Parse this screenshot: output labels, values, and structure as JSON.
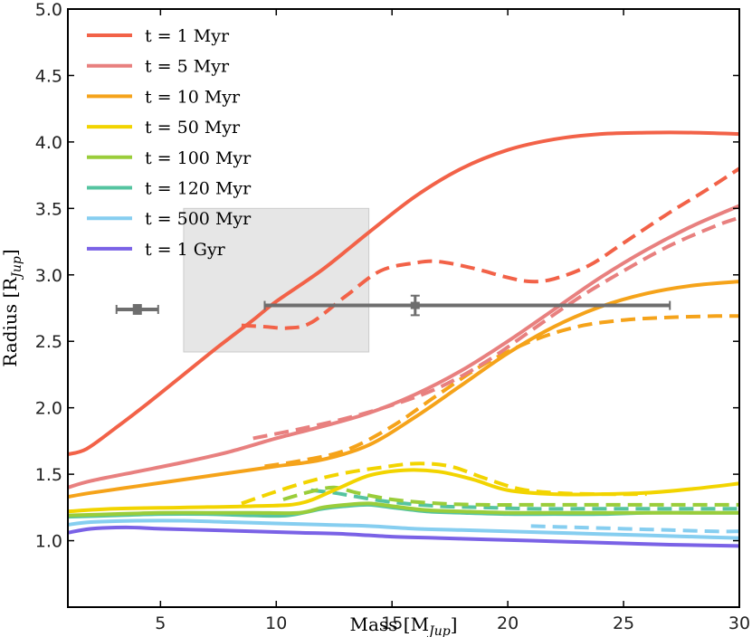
{
  "chart_data": {
    "type": "line",
    "title": "",
    "xlabel": "Mass [M",
    "xlabel_sub": "Jup",
    "xlabel_end": "]",
    "ylabel": "Radius [R",
    "ylabel_sub": "Jup",
    "ylabel_end": "]",
    "xlim": [
      1,
      30
    ],
    "ylim": [
      0.5,
      5.0
    ],
    "xticks": [
      5,
      10,
      15,
      20,
      25,
      30
    ],
    "yticks": [
      1.0,
      1.5,
      2.0,
      2.5,
      3.0,
      3.5,
      4.0,
      4.5,
      5.0
    ],
    "xtick_labels": [
      "5",
      "10",
      "15",
      "20",
      "25",
      "30"
    ],
    "ytick_labels": [
      "1.0",
      "1.5",
      "2.0",
      "2.5",
      "3.0",
      "3.5",
      "4.0",
      "4.5",
      "5.0"
    ],
    "legend_position": "top-left",
    "series": [
      {
        "name": "t = 1 Myr",
        "color": "#f26248",
        "style": "solid",
        "x": [
          1,
          1.8,
          3,
          4.5,
          6,
          7.5,
          9,
          10,
          12,
          14,
          16,
          18,
          20,
          22,
          24,
          26,
          28,
          30
        ],
        "y": [
          1.65,
          1.69,
          1.84,
          2.04,
          2.25,
          2.46,
          2.66,
          2.8,
          3.04,
          3.32,
          3.59,
          3.8,
          3.94,
          4.02,
          4.06,
          4.07,
          4.07,
          4.06
        ]
      },
      {
        "name": "t = 1 Myr (dashed)",
        "color": "#f26248",
        "style": "dashed",
        "x": [
          8.5,
          9.5,
          10.5,
          11.5,
          13,
          14.5,
          16,
          17,
          18.5,
          20,
          21,
          22,
          23.5,
          25,
          27,
          28.5,
          30
        ],
        "y": [
          2.62,
          2.61,
          2.6,
          2.64,
          2.84,
          3.03,
          3.09,
          3.1,
          3.05,
          2.98,
          2.95,
          2.97,
          3.07,
          3.24,
          3.47,
          3.63,
          3.8
        ]
      },
      {
        "name": "t = 5 Myr",
        "color": "#e8807f",
        "style": "solid",
        "x": [
          1,
          2,
          4,
          6,
          8,
          10,
          12,
          14,
          16,
          18,
          20,
          22,
          24,
          26,
          28,
          30
        ],
        "y": [
          1.4,
          1.45,
          1.52,
          1.59,
          1.67,
          1.77,
          1.86,
          1.96,
          2.1,
          2.28,
          2.5,
          2.74,
          2.98,
          3.19,
          3.37,
          3.52
        ]
      },
      {
        "name": "t = 5 Myr (dashed)",
        "color": "#e8807f",
        "style": "dashed",
        "x": [
          9,
          11,
          13,
          15,
          17,
          19,
          21,
          23,
          25,
          27,
          29,
          30
        ],
        "y": [
          1.77,
          1.84,
          1.92,
          2.02,
          2.15,
          2.34,
          2.58,
          2.82,
          3.03,
          3.22,
          3.37,
          3.43
        ]
      },
      {
        "name": "t = 10 Myr",
        "color": "#f5a31a",
        "style": "solid",
        "x": [
          1,
          2,
          4,
          6,
          8,
          10,
          12,
          14,
          16,
          18,
          20,
          22,
          24,
          26,
          28,
          30
        ],
        "y": [
          1.33,
          1.36,
          1.41,
          1.46,
          1.51,
          1.56,
          1.61,
          1.72,
          1.93,
          2.17,
          2.41,
          2.61,
          2.76,
          2.86,
          2.92,
          2.95
        ]
      },
      {
        "name": "t = 10 Myr (dashed)",
        "color": "#f5a31a",
        "style": "dashed",
        "x": [
          9.5,
          11,
          13,
          15,
          17,
          19,
          21,
          23,
          25,
          27,
          29,
          30
        ],
        "y": [
          1.56,
          1.6,
          1.68,
          1.86,
          2.1,
          2.33,
          2.5,
          2.61,
          2.66,
          2.68,
          2.69,
          2.69
        ]
      },
      {
        "name": "t = 50 Myr",
        "color": "#f2d400",
        "style": "solid",
        "x": [
          1,
          3,
          6,
          9,
          11,
          12.5,
          14,
          15.5,
          17,
          18.5,
          20,
          22,
          24,
          26,
          28,
          30
        ],
        "y": [
          1.22,
          1.24,
          1.25,
          1.26,
          1.28,
          1.38,
          1.49,
          1.53,
          1.52,
          1.46,
          1.38,
          1.35,
          1.35,
          1.36,
          1.39,
          1.43
        ]
      },
      {
        "name": "t = 50 Myr (dashed)",
        "color": "#f2d400",
        "style": "dashed",
        "x": [
          8.5,
          10,
          11.5,
          13,
          14.5,
          16,
          17.5,
          19,
          20.5,
          22,
          24,
          26
        ],
        "y": [
          1.28,
          1.37,
          1.45,
          1.51,
          1.55,
          1.58,
          1.56,
          1.47,
          1.39,
          1.36,
          1.35,
          1.35
        ]
      },
      {
        "name": "t = 100 Myr",
        "color": "#9acd3a",
        "style": "solid",
        "x": [
          1,
          3,
          5,
          7,
          9,
          11,
          12,
          13,
          14,
          15,
          16.5,
          18,
          20,
          22,
          24,
          26,
          28,
          30
        ],
        "y": [
          1.19,
          1.2,
          1.21,
          1.21,
          1.21,
          1.21,
          1.25,
          1.27,
          1.28,
          1.26,
          1.23,
          1.22,
          1.21,
          1.21,
          1.21,
          1.21,
          1.21,
          1.21
        ]
      },
      {
        "name": "t = 100 Myr (dashed)",
        "color": "#9acd3a",
        "style": "dashed",
        "x": [
          10.3,
          11.5,
          12.5,
          13.5,
          15,
          17,
          19,
          21,
          23,
          25,
          27,
          30
        ],
        "y": [
          1.31,
          1.37,
          1.4,
          1.36,
          1.31,
          1.28,
          1.27,
          1.27,
          1.27,
          1.27,
          1.27,
          1.27
        ]
      },
      {
        "name": "t = 120 Myr",
        "color": "#55c4a0",
        "style": "solid",
        "x": [
          1,
          3,
          5,
          7,
          9,
          10.5,
          12,
          13,
          14,
          15,
          16.5,
          18,
          20,
          22,
          24,
          26,
          28,
          30
        ],
        "y": [
          1.18,
          1.19,
          1.2,
          1.2,
          1.19,
          1.19,
          1.24,
          1.26,
          1.27,
          1.25,
          1.22,
          1.21,
          1.2,
          1.2,
          1.2,
          1.21,
          1.21,
          1.21
        ]
      },
      {
        "name": "t = 120 Myr (dashed)",
        "color": "#55c4a0",
        "style": "dashed",
        "x": [
          11.5,
          12.5,
          13.5,
          15,
          17,
          19,
          21,
          23,
          25,
          27,
          30
        ],
        "y": [
          1.38,
          1.36,
          1.33,
          1.29,
          1.26,
          1.25,
          1.24,
          1.24,
          1.24,
          1.24,
          1.24
        ]
      },
      {
        "name": "t = 500 Myr",
        "color": "#86cef0",
        "style": "solid",
        "x": [
          1,
          2,
          4,
          6,
          8,
          10,
          12,
          14,
          16,
          18,
          20,
          22,
          24,
          26,
          28,
          30
        ],
        "y": [
          1.12,
          1.14,
          1.15,
          1.15,
          1.14,
          1.13,
          1.12,
          1.11,
          1.09,
          1.08,
          1.07,
          1.06,
          1.05,
          1.04,
          1.03,
          1.02
        ]
      },
      {
        "name": "t = 500 Myr (dashed)",
        "color": "#86cef0",
        "style": "dashed",
        "x": [
          21,
          23,
          25,
          27,
          29,
          30
        ],
        "y": [
          1.11,
          1.1,
          1.09,
          1.08,
          1.07,
          1.07
        ]
      },
      {
        "name": "t = 1 Gyr",
        "color": "#7a62e6",
        "style": "solid",
        "x": [
          1,
          2,
          3.5,
          5,
          7,
          9,
          11,
          13,
          15,
          17,
          19,
          21,
          23,
          25,
          27,
          30
        ],
        "y": [
          1.06,
          1.09,
          1.1,
          1.09,
          1.08,
          1.07,
          1.06,
          1.05,
          1.03,
          1.02,
          1.01,
          1.0,
          0.99,
          0.98,
          0.97,
          0.96
        ]
      }
    ],
    "shaded_region": {
      "x": [
        6,
        14
      ],
      "y": [
        2.42,
        3.5
      ],
      "color": "#e6e6e6"
    },
    "error_points": [
      {
        "x": 4.0,
        "y": 2.74,
        "xerr": [
          0.9,
          0.9
        ],
        "yerr": [
          0.02,
          0.02
        ],
        "color": "#6e6e6e"
      },
      {
        "x": 16.0,
        "y": 2.77,
        "xerr": [
          6.5,
          11.0
        ],
        "yerr": [
          0.06,
          0.06
        ],
        "color": "#6e6e6e"
      }
    ],
    "legend": [
      {
        "label": "t = 1 Myr",
        "color": "#f26248"
      },
      {
        "label": "t = 5 Myr",
        "color": "#e8807f"
      },
      {
        "label": "t = 10 Myr",
        "color": "#f5a31a"
      },
      {
        "label": "t = 50 Myr",
        "color": "#f2d400"
      },
      {
        "label": "t = 100 Myr",
        "color": "#9acd3a"
      },
      {
        "label": "t = 120 Myr",
        "color": "#55c4a0"
      },
      {
        "label": "t = 500 Myr",
        "color": "#86cef0"
      },
      {
        "label": "t = 1 Gyr",
        "color": "#7a62e6"
      }
    ]
  }
}
